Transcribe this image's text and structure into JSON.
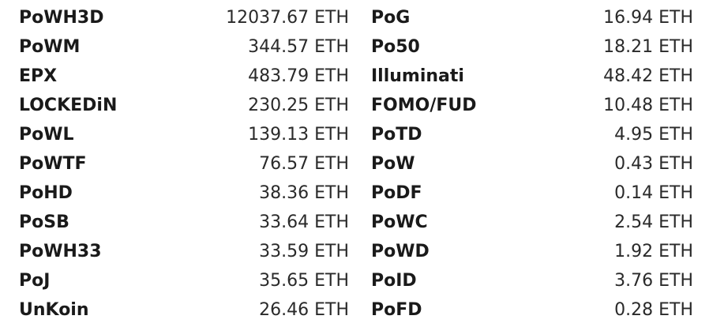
{
  "left_column": [
    {
      "name": "PoWH3D",
      "value": "12037.67 ETH"
    },
    {
      "name": "PoWM",
      "value": "344.57 ETH"
    },
    {
      "name": "EPX",
      "value": "483.79 ETH"
    },
    {
      "name": "LOCKEDiN",
      "value": "230.25 ETH"
    },
    {
      "name": "PoWL",
      "value": "139.13 ETH"
    },
    {
      "name": "PoWTF",
      "value": "76.57 ETH"
    },
    {
      "name": "PoHD",
      "value": "38.36 ETH"
    },
    {
      "name": "PoSB",
      "value": "33.64 ETH"
    },
    {
      "name": "PoWH33",
      "value": "33.59 ETH"
    },
    {
      "name": "PoJ",
      "value": "35.65 ETH"
    },
    {
      "name": "UnKoin",
      "value": "26.46 ETH"
    }
  ],
  "right_column": [
    {
      "name": "PoG",
      "value": "16.94 ETH"
    },
    {
      "name": "Po50",
      "value": "18.21 ETH"
    },
    {
      "name": "Illuminati",
      "value": "48.42 ETH"
    },
    {
      "name": "FOMO/FUD",
      "value": "10.48 ETH"
    },
    {
      "name": "PoTD",
      "value": "4.95 ETH"
    },
    {
      "name": "PoW",
      "value": "0.43 ETH"
    },
    {
      "name": "PoDF",
      "value": "0.14 ETH"
    },
    {
      "name": "PoWC",
      "value": "2.54 ETH"
    },
    {
      "name": "PoWD",
      "value": "1.92 ETH"
    },
    {
      "name": "PoID",
      "value": "3.76 ETH"
    },
    {
      "name": "PoFD",
      "value": "0.28 ETH"
    }
  ]
}
